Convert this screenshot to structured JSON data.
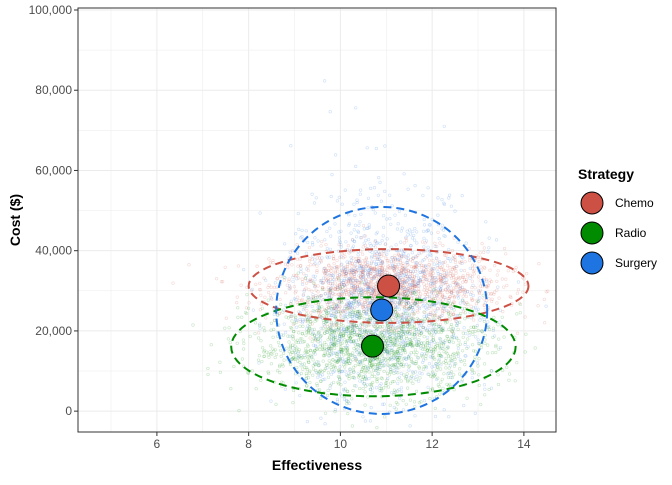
{
  "chart_data": {
    "type": "scatter",
    "title": "",
    "xlabel": "Effectiveness",
    "ylabel": "Cost ($)",
    "xlim": [
      4.28,
      14.7
    ],
    "ylim": [
      -5200,
      100500
    ],
    "xticks": [
      6,
      8,
      10,
      12,
      14
    ],
    "yticks": [
      0,
      20000,
      40000,
      60000,
      80000,
      100000
    ],
    "ytick_labels": [
      "0",
      "20,000",
      "40,000",
      "60,000",
      "80,000",
      "100,000"
    ],
    "grid": true,
    "legend": {
      "title": "Strategy",
      "position": "right"
    },
    "series": [
      {
        "name": "Chemo",
        "color": "#CD5045",
        "mean": {
          "x": 11.05,
          "y": 31200
        },
        "sd": {
          "x": 1.25,
          "y": 4600
        },
        "ellipse": {
          "cx": 11.05,
          "cy": 31200,
          "rx": 3.05,
          "ry": 9200
        }
      },
      {
        "name": "Radio",
        "color": "#008B00",
        "mean": {
          "x": 10.7,
          "y": 16200
        },
        "sd": {
          "x": 1.3,
          "y": 6000
        },
        "ellipse": {
          "cx": 10.72,
          "cy": 16050,
          "rx": 3.1,
          "ry": 12350
        }
      },
      {
        "name": "Surgery",
        "color": "#1E74E0",
        "mean": {
          "x": 10.9,
          "y": 25200
        },
        "sd": {
          "x": 1.0,
          "y": 11500
        },
        "ellipse": {
          "cx": 10.9,
          "cy": 25100,
          "rx": 2.3,
          "ry": 25800
        }
      }
    ]
  }
}
